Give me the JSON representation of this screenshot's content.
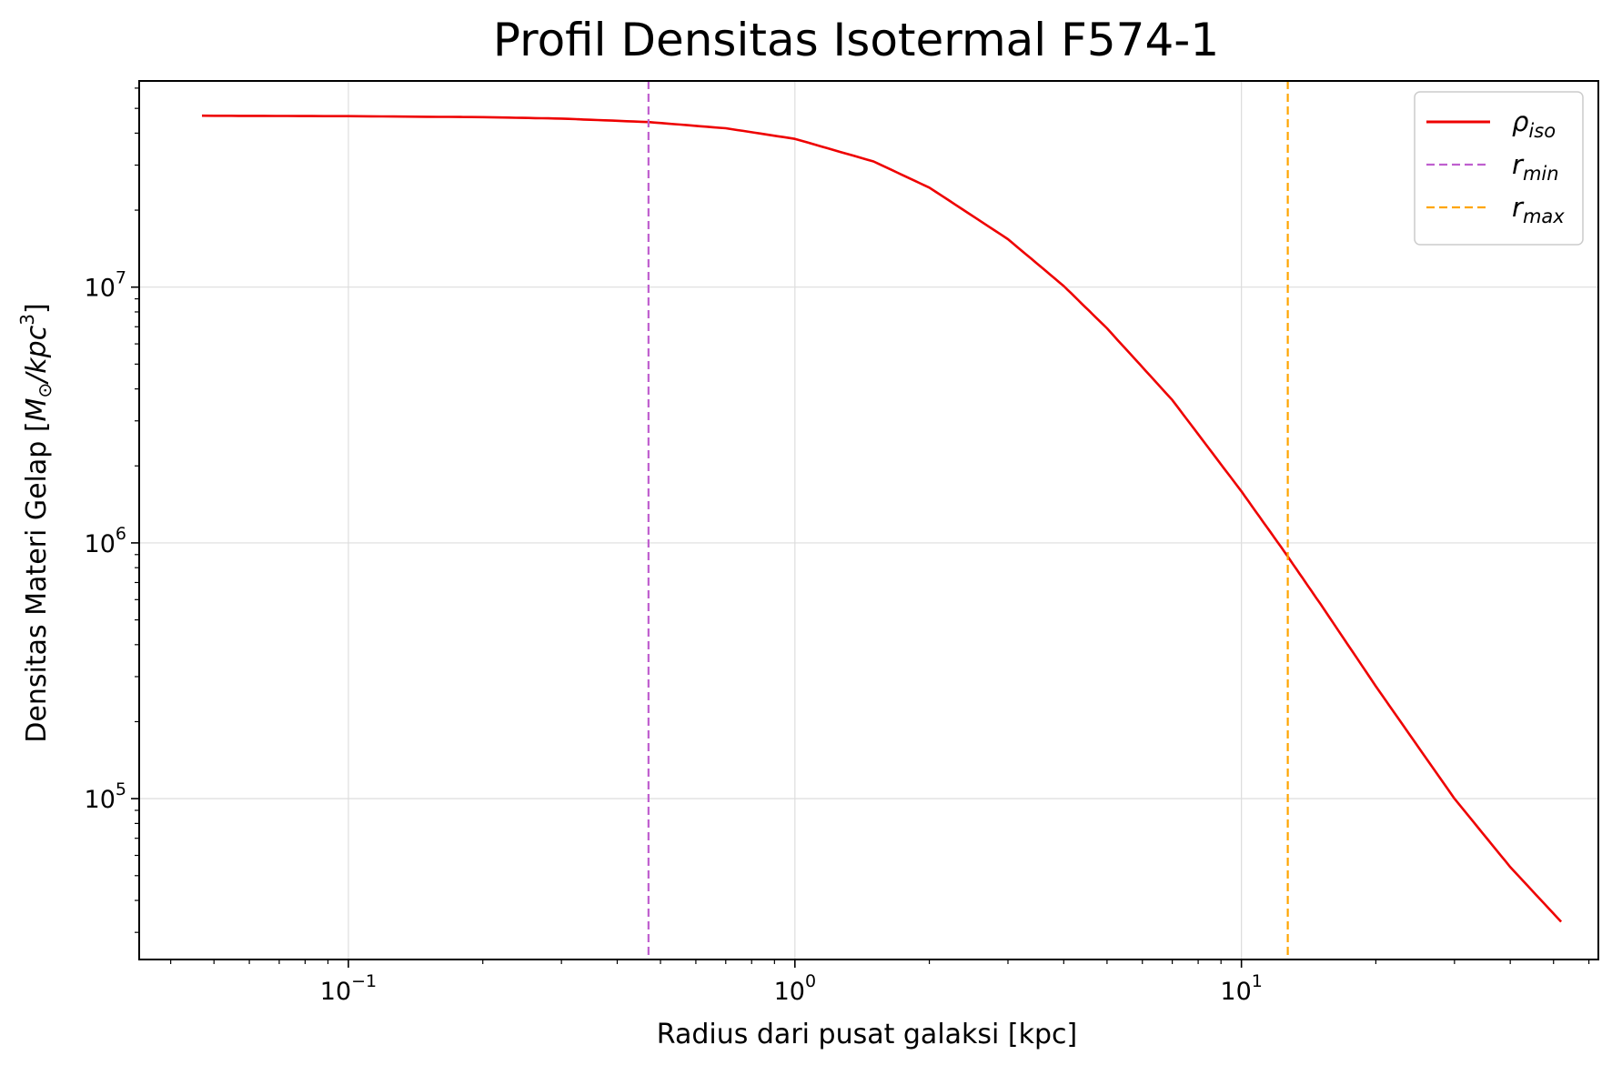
{
  "chart_data": {
    "type": "line",
    "title": "Profil Densitas Isotermal F574-1",
    "xlabel": "Radius dari pusat galaksi [kpc]",
    "ylabel": {
      "prefix": "Densitas Materi Gelap [",
      "m": "M",
      "sun": "⊙",
      "mid": "/kpc",
      "cube": "3",
      "suffix": "]"
    },
    "xscale": "log",
    "yscale": "log",
    "xlim": [
      0.034,
      63
    ],
    "ylim": [
      23500,
      64000000
    ],
    "grid": true,
    "legend_position": "top-right",
    "x_ticks": [
      {
        "value": 0.1,
        "base": "10",
        "exp": "−1"
      },
      {
        "value": 1,
        "base": "10",
        "exp": "0"
      },
      {
        "value": 10,
        "base": "10",
        "exp": "1"
      }
    ],
    "y_ticks": [
      {
        "value": 100000,
        "base": "10",
        "exp": "5"
      },
      {
        "value": 1000000,
        "base": "10",
        "exp": "6"
      },
      {
        "value": 10000000,
        "base": "10",
        "exp": "7"
      }
    ],
    "series": [
      {
        "name": "ρ",
        "name_sub": "iso",
        "style": "solid",
        "color": "#ee0000",
        "x": [
          0.047,
          0.1,
          0.2,
          0.3,
          0.47,
          0.7,
          1.0,
          1.5,
          2.0,
          3.0,
          4.0,
          5.0,
          7.0,
          10.0,
          12.5,
          15.0,
          20.0,
          30.0,
          40.0,
          52.0
        ],
        "y": [
          46800000,
          46600000,
          46200000,
          45600000,
          44200000,
          41800000,
          38000000,
          31000000,
          24500000,
          15400000,
          10100000,
          6900000,
          3620000,
          1590000,
          920000,
          580000,
          275000,
          100000,
          54000,
          33000
        ]
      },
      {
        "name": "r",
        "name_sub": "min",
        "style": "dashed",
        "orientation": "vertical",
        "color": "#bf5fcf",
        "x_value": 0.47
      },
      {
        "name": "r",
        "name_sub": "max",
        "style": "dashed",
        "orientation": "vertical",
        "color": "#ffa500",
        "x_value": 12.7
      }
    ]
  }
}
